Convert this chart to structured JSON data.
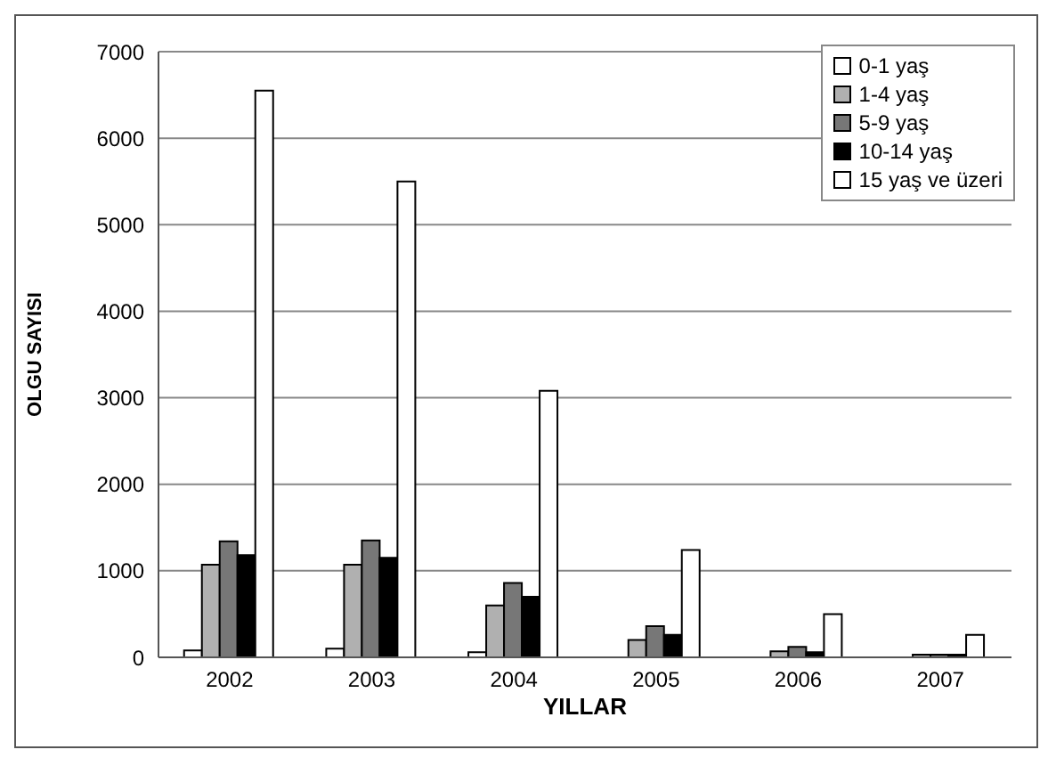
{
  "chart_data": {
    "type": "bar",
    "xlabel": "YILLAR",
    "ylabel": "OLGU SAYISI",
    "categories": [
      "2002",
      "2003",
      "2004",
      "2005",
      "2006",
      "2007"
    ],
    "series": [
      {
        "name": "0-1 yaş",
        "color": "#ffffff",
        "values": [
          80,
          100,
          60,
          null,
          null,
          null
        ]
      },
      {
        "name": "1-4 yaş",
        "color": "#b0b0b0",
        "values": [
          1070,
          1070,
          600,
          200,
          70,
          30
        ]
      },
      {
        "name": "5-9 yaş",
        "color": "#777777",
        "values": [
          1340,
          1350,
          860,
          360,
          120,
          30
        ]
      },
      {
        "name": "10-14 yaş",
        "color": "#000000",
        "values": [
          1180,
          1150,
          700,
          260,
          60,
          30
        ]
      },
      {
        "name": "15 yaş ve üzeri",
        "color": "#ffffff",
        "values": [
          6550,
          5500,
          3080,
          1240,
          500,
          260
        ]
      }
    ],
    "ylim": [
      0,
      7000
    ],
    "yticks": [
      0,
      1000,
      2000,
      3000,
      4000,
      5000,
      6000,
      7000
    ],
    "grid": "y",
    "legend": "top right"
  }
}
